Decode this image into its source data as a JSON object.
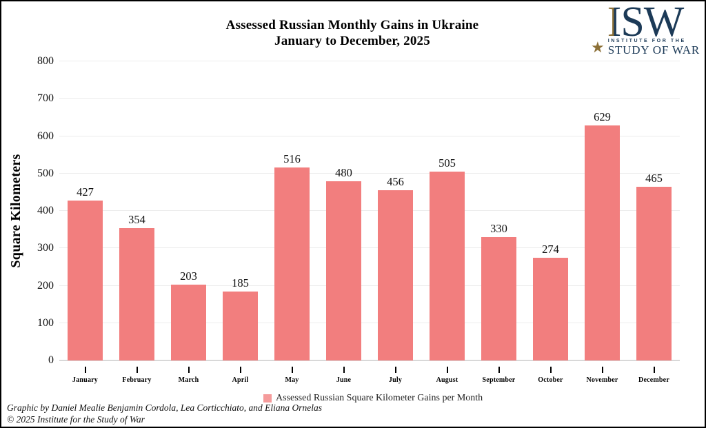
{
  "title": {
    "line1": "Assessed Russian Monthly Gains in Ukraine",
    "line2": "January to December, 2025"
  },
  "logo": {
    "acronym_i": "I",
    "acronym_sw": "SW",
    "star": "★",
    "line1": "INSTITUTE FOR THE",
    "line2": "STUDY OF WAR"
  },
  "chart_data": {
    "type": "bar",
    "title": "Assessed Russian Monthly Gains in Ukraine",
    "subtitle": "January to December, 2025",
    "categories": [
      "January",
      "February",
      "March",
      "April",
      "May",
      "June",
      "July",
      "August",
      "September",
      "October",
      "November",
      "December"
    ],
    "values": [
      427,
      354,
      203,
      185,
      516,
      480,
      456,
      505,
      330,
      274,
      629,
      465
    ],
    "xlabel": "",
    "ylabel": "Square Kilometers",
    "ylim": [
      0,
      800
    ],
    "yticks": [
      0,
      100,
      200,
      300,
      400,
      500,
      600,
      700,
      800
    ],
    "grid": "horizontal",
    "legend_position": "bottom",
    "legend_label": "Assessed Russian Square Kilometer Gains per Month",
    "bar_color": "#F27E7E"
  },
  "footer": {
    "credit": "Graphic by Daniel Mealie Benjamin Cordola, Lea Corticchiato, and Eliana Ornelas",
    "copyright": "© 2025 Institute for the Study of War"
  },
  "colors": {
    "bar": "#F27E7E",
    "legend_swatch": "#F59B9B",
    "navy": "#1C3A57",
    "gold": "#8C7037",
    "grid": "#ECECEC",
    "baseline": "#D8D8D8"
  }
}
